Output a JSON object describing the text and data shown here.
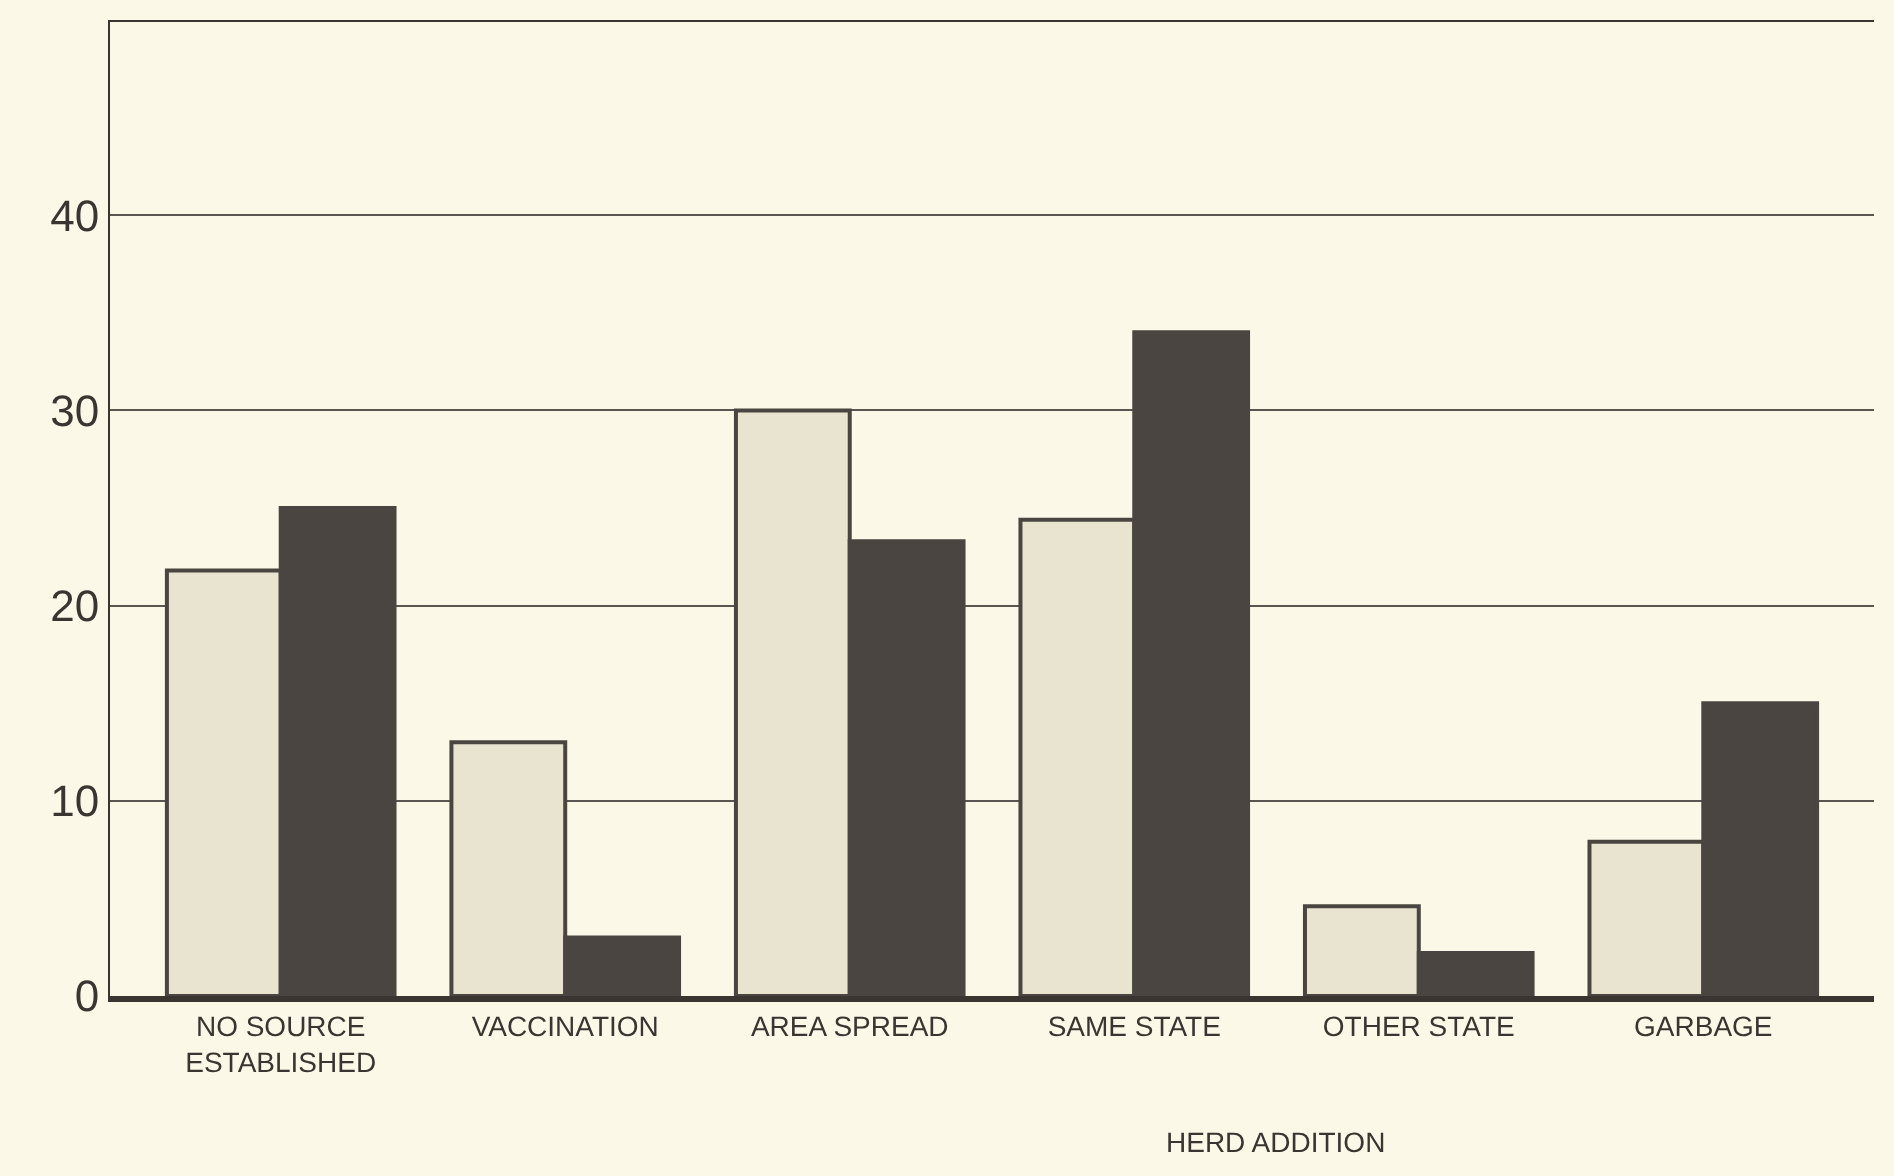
{
  "chart_data": {
    "type": "bar",
    "categories": [
      "NO SOURCE ESTABLISHED",
      "VACCINATION",
      "AREA SPREAD",
      "SAME STATE",
      "OTHER STATE",
      "GARBAGE"
    ],
    "series": [
      {
        "color": "#e8e4d0",
        "values": [
          21.8,
          13.0,
          30.0,
          24.4,
          4.6,
          7.9
        ]
      },
      {
        "color": "#4a4540",
        "values": [
          25.0,
          3.0,
          23.3,
          34.0,
          2.2,
          15.0
        ]
      }
    ],
    "ylim": [
      0,
      50
    ],
    "yticks": [
      0,
      10,
      20,
      30,
      40
    ],
    "grid": "y",
    "annotations": [
      "HERD ADDITION"
    ]
  }
}
